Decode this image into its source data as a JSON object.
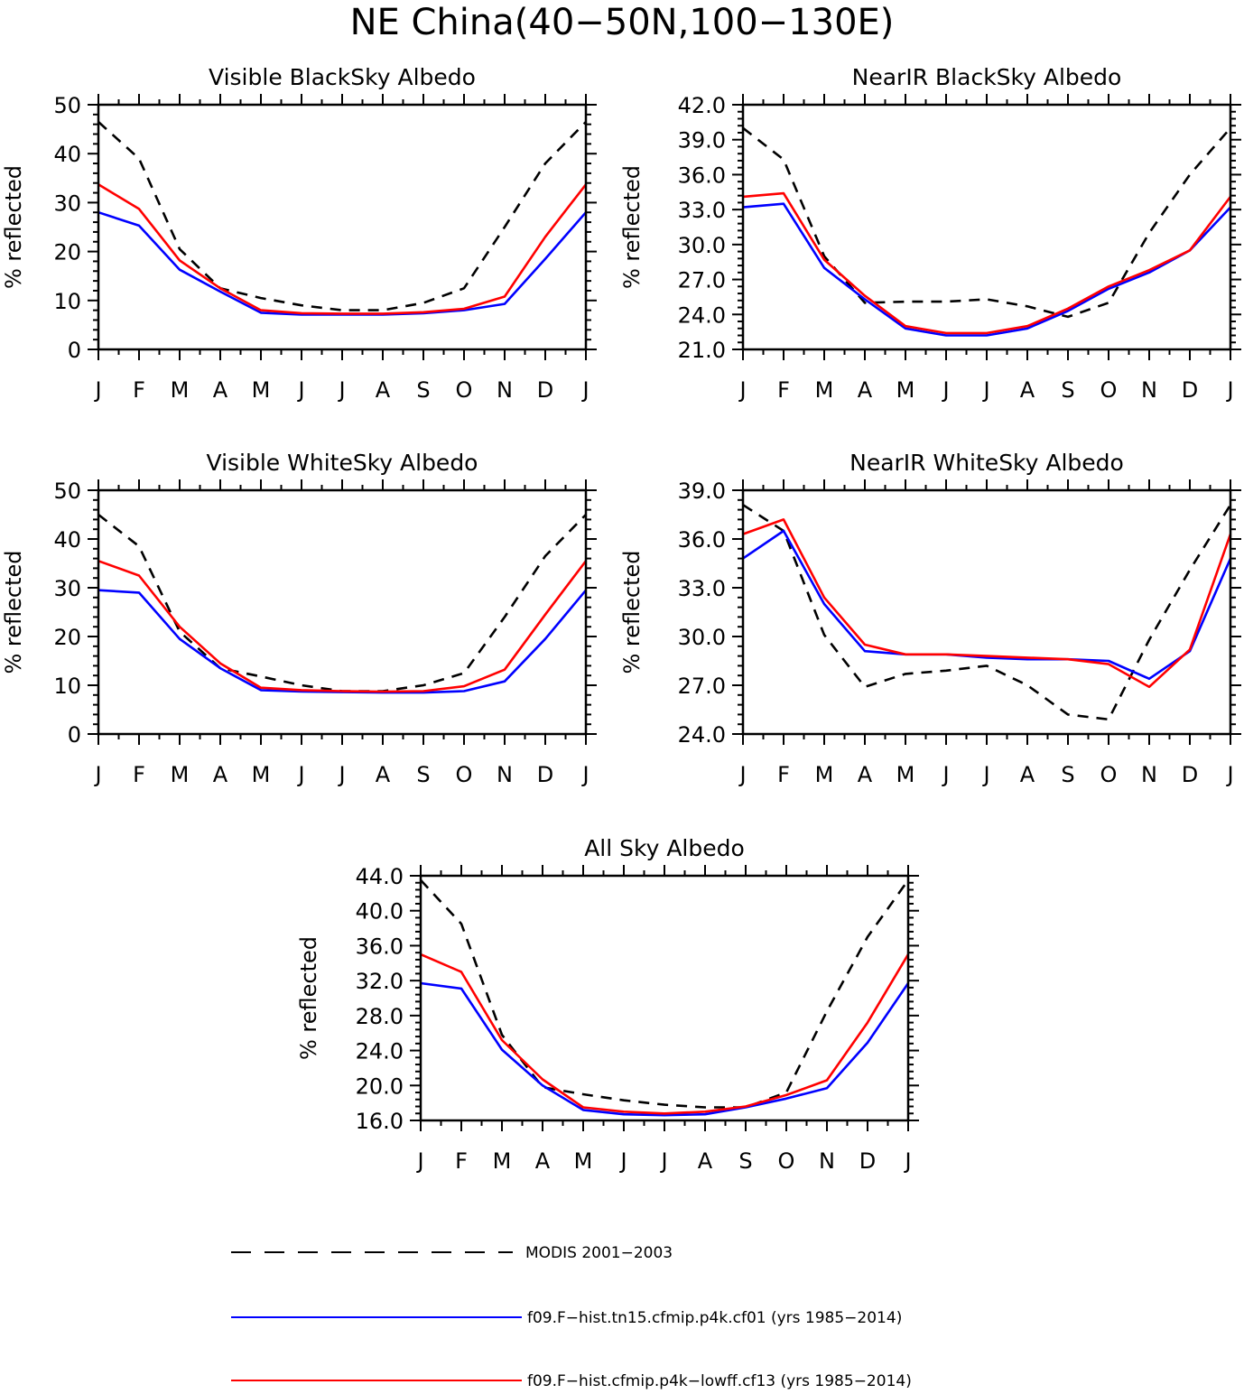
{
  "figure": {
    "title": "NE China(40−50N,100−130E)"
  },
  "colors": {
    "modis": "#000000",
    "cf01": "#0000ff",
    "cf13": "#ff0000"
  },
  "legend": [
    {
      "key": "modis",
      "label": "MODIS 2001−2003",
      "dash": "dashed"
    },
    {
      "key": "cf01",
      "label": "f09.F−hist.tn15.cfmip.p4k.cf01 (yrs 1985−2014)",
      "dash": "solid"
    },
    {
      "key": "cf13",
      "label": "f09.F−hist.cfmip.p4k−lowff.cf13 (yrs 1985−2014)",
      "dash": "solid"
    }
  ],
  "chart_data": [
    {
      "type": "line",
      "title": "Visible BlackSky Albedo",
      "ylabel": "% reflected",
      "xlabel": "",
      "categories": [
        "J",
        "F",
        "M",
        "A",
        "M",
        "J",
        "J",
        "A",
        "S",
        "O",
        "N",
        "D",
        "J"
      ],
      "ylim": [
        0,
        50
      ],
      "yticks": [
        "0",
        "10",
        "20",
        "30",
        "40",
        "50"
      ],
      "series": [
        {
          "key": "modis",
          "name": "MODIS 2001−2003",
          "values": [
            46.5,
            39,
            20.5,
            12.5,
            10.5,
            9,
            8,
            8,
            9.5,
            12.5,
            25,
            38,
            46.5
          ]
        },
        {
          "key": "cf01",
          "name": "f09.F−hist.tn15.cfmip.p4k.cf01 (yrs 1985−2014)",
          "values": [
            28,
            25.3,
            16.3,
            11.8,
            7.5,
            7.1,
            7.1,
            7.1,
            7.4,
            8,
            9.3,
            18.5,
            28
          ]
        },
        {
          "key": "cf13",
          "name": "f09.F−hist.cfmip.p4k−lowff.cf13 (yrs 1985−2014)",
          "values": [
            33.7,
            28.7,
            18.2,
            12.5,
            8,
            7.4,
            7.3,
            7.3,
            7.6,
            8.3,
            10.8,
            23,
            33.7
          ]
        }
      ]
    },
    {
      "type": "line",
      "title": "NearIR BlackSky Albedo",
      "ylabel": "% reflected",
      "xlabel": "",
      "categories": [
        "J",
        "F",
        "M",
        "A",
        "M",
        "J",
        "J",
        "A",
        "S",
        "O",
        "N",
        "D",
        "J"
      ],
      "ylim": [
        21,
        42
      ],
      "yticks": [
        "21.0",
        "24.0",
        "27.0",
        "30.0",
        "33.0",
        "36.0",
        "39.0",
        "42.0"
      ],
      "series": [
        {
          "key": "modis",
          "name": "MODIS 2001−2003",
          "values": [
            40,
            37.3,
            29,
            25,
            25.1,
            25.1,
            25.3,
            24.7,
            23.8,
            25,
            31,
            36,
            40
          ]
        },
        {
          "key": "cf01",
          "name": "f09.F−hist.tn15.cfmip.p4k.cf01 (yrs 1985−2014)",
          "values": [
            33.2,
            33.5,
            28,
            25.3,
            22.8,
            22.2,
            22.2,
            22.8,
            24.3,
            26.2,
            27.6,
            29.5,
            33.2
          ]
        },
        {
          "key": "cf13",
          "name": "f09.F−hist.cfmip.p4k−lowff.cf13 (yrs 1985−2014)",
          "values": [
            34.1,
            34.4,
            28.7,
            25.6,
            23,
            22.4,
            22.4,
            23,
            24.5,
            26.4,
            27.8,
            29.5,
            34.1
          ]
        }
      ]
    },
    {
      "type": "line",
      "title": "Visible WhiteSky Albedo",
      "ylabel": "% reflected",
      "xlabel": "",
      "categories": [
        "J",
        "F",
        "M",
        "A",
        "M",
        "J",
        "J",
        "A",
        "S",
        "O",
        "N",
        "D",
        "J"
      ],
      "ylim": [
        0,
        50
      ],
      "yticks": [
        "0",
        "10",
        "20",
        "30",
        "40",
        "50"
      ],
      "series": [
        {
          "key": "modis",
          "name": "MODIS 2001−2003",
          "values": [
            45,
            38.5,
            21,
            13.5,
            11.8,
            10,
            8.8,
            8.8,
            10,
            12.5,
            24,
            36.5,
            45
          ]
        },
        {
          "key": "cf01",
          "name": "f09.F−hist.tn15.cfmip.p4k.cf01 (yrs 1985−2014)",
          "values": [
            29.5,
            29,
            19.5,
            13.5,
            9,
            8.7,
            8.6,
            8.5,
            8.5,
            8.8,
            10.8,
            19.5,
            29.5
          ]
        },
        {
          "key": "cf13",
          "name": "f09.F−hist.cfmip.p4k−lowff.cf13 (yrs 1985−2014)",
          "values": [
            35.5,
            32.5,
            22,
            14.5,
            9.5,
            9,
            8.8,
            8.7,
            8.8,
            9.8,
            13.2,
            24.5,
            35.5
          ]
        }
      ]
    },
    {
      "type": "line",
      "title": "NearIR WhiteSky Albedo",
      "ylabel": "% reflected",
      "xlabel": "",
      "categories": [
        "J",
        "F",
        "M",
        "A",
        "M",
        "J",
        "J",
        "A",
        "S",
        "O",
        "N",
        "D",
        "J"
      ],
      "ylim": [
        24,
        39
      ],
      "yticks": [
        "24.0",
        "27.0",
        "30.0",
        "33.0",
        "36.0",
        "39.0"
      ],
      "series": [
        {
          "key": "modis",
          "name": "MODIS 2001−2003",
          "values": [
            38.1,
            36.5,
            30.1,
            26.9,
            27.7,
            27.9,
            28.2,
            27,
            25.2,
            24.9,
            29.8,
            34.1,
            38.1
          ]
        },
        {
          "key": "cf01",
          "name": "f09.F−hist.tn15.cfmip.p4k.cf01 (yrs 1985−2014)",
          "values": [
            34.8,
            36.5,
            32,
            29.1,
            28.9,
            28.9,
            28.7,
            28.6,
            28.6,
            28.5,
            27.4,
            29.1,
            34.8
          ]
        },
        {
          "key": "cf13",
          "name": "f09.F−hist.cfmip.p4k−lowff.cf13 (yrs 1985−2014)",
          "values": [
            36.3,
            37.2,
            32.4,
            29.5,
            28.9,
            28.9,
            28.8,
            28.7,
            28.6,
            28.3,
            26.9,
            29.2,
            36.3
          ]
        }
      ]
    },
    {
      "type": "line",
      "title": "All Sky Albedo",
      "ylabel": "% reflected",
      "xlabel": "",
      "categories": [
        "J",
        "F",
        "M",
        "A",
        "M",
        "J",
        "J",
        "A",
        "S",
        "O",
        "N",
        "D",
        "J"
      ],
      "ylim": [
        16,
        44
      ],
      "yticks": [
        "16.0",
        "20.0",
        "24.0",
        "28.0",
        "32.0",
        "36.0",
        "40.0",
        "44.0"
      ],
      "series": [
        {
          "key": "modis",
          "name": "MODIS 2001−2003",
          "values": [
            43.5,
            38.5,
            25.8,
            19.8,
            19,
            18.3,
            17.8,
            17.5,
            17.5,
            19.2,
            28.5,
            37,
            43.5
          ]
        },
        {
          "key": "cf01",
          "name": "f09.F−hist.tn15.cfmip.p4k.cf01 (yrs 1985−2014)",
          "values": [
            31.7,
            31.1,
            24.1,
            20,
            17.2,
            16.7,
            16.6,
            16.7,
            17.5,
            18.5,
            19.7,
            24.9,
            31.7
          ]
        },
        {
          "key": "cf13",
          "name": "f09.F−hist.cfmip.p4k−lowff.cf13 (yrs 1985−2014)",
          "values": [
            35,
            33,
            25.2,
            20.7,
            17.5,
            17,
            16.8,
            17,
            17.6,
            18.9,
            20.6,
            27.2,
            35
          ]
        }
      ]
    }
  ]
}
